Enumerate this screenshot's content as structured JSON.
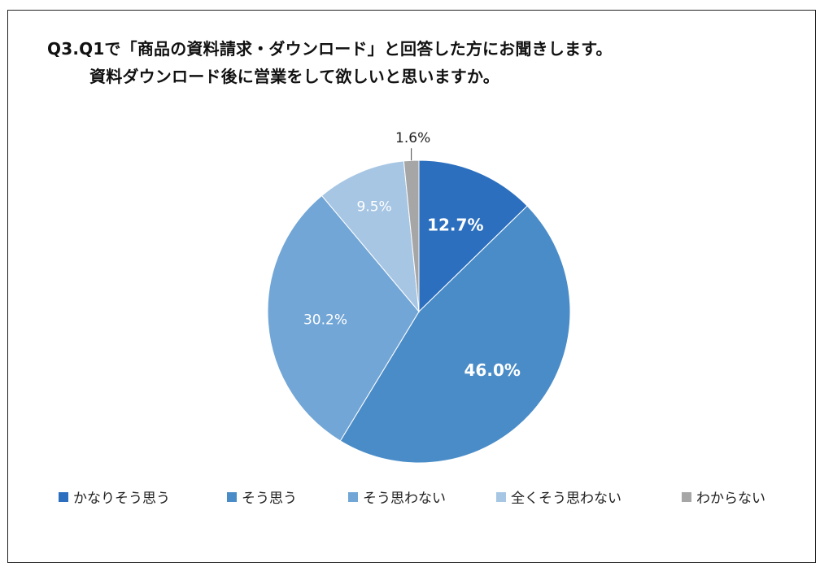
{
  "title": {
    "line1": "Q3.Q1で「商品の資料請求・ダウンロード」と回答した方にお聞きします。",
    "line2": "資料ダウンロード後に営業をして欲しいと思いますか。"
  },
  "chart_data": {
    "type": "pie",
    "title": "Q3.Q1で「商品の資料請求・ダウンロード」と回答した方にお聞きします。 資料ダウンロード後に営業をして欲しいと思いますか。",
    "start": "12 o'clock, clockwise",
    "legend_position": "bottom",
    "slices": [
      {
        "name": "かなりそう思う",
        "value": 12.7,
        "label": "12.7%",
        "color": "#2b6fbe",
        "label_color": "#ffffff",
        "label_bold": true
      },
      {
        "name": "そう思う",
        "value": 46.0,
        "label": "46.0%",
        "color": "#4a8cc8",
        "label_color": "#ffffff",
        "label_bold": true
      },
      {
        "name": "そう思わない",
        "value": 30.2,
        "label": "30.2%",
        "color": "#72a6d6",
        "label_color": "#ffffff",
        "label_bold": false
      },
      {
        "name": "全くそう思わない",
        "value": 9.5,
        "label": "9.5%",
        "color": "#a7c6e4",
        "label_color": "#ffffff",
        "label_bold": false
      },
      {
        "name": "わからない",
        "value": 1.6,
        "label": "1.6%",
        "color": "#a6a6a6",
        "label_color": "#222222",
        "label_bold": false
      }
    ]
  }
}
